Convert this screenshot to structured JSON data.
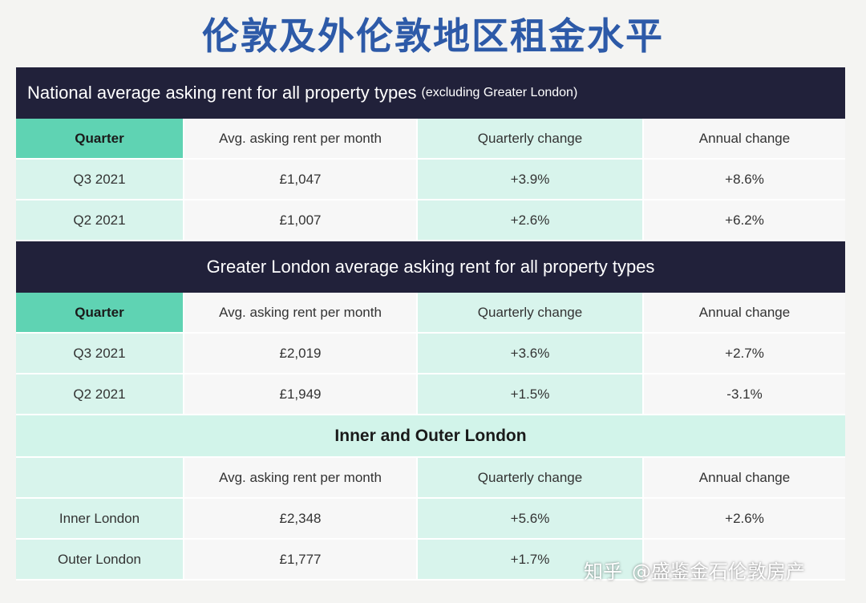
{
  "title": "伦敦及外伦敦地区租金水平",
  "national": {
    "heading": "National average asking rent for all property types",
    "heading_sub": "(excluding Greater London)",
    "columns": [
      "Quarter",
      "Avg. asking rent per month",
      "Quarterly change",
      "Annual change"
    ],
    "rows": [
      [
        "Q3 2021",
        "£1,047",
        "+3.9%",
        "+8.6%"
      ],
      [
        "Q2 2021",
        "£1,007",
        "+2.6%",
        "+6.2%"
      ]
    ]
  },
  "greater_london": {
    "heading": "Greater London average asking rent for all property types",
    "columns": [
      "Quarter",
      "Avg. asking rent per month",
      "Quarterly change",
      "Annual change"
    ],
    "rows": [
      [
        "Q3 2021",
        "£2,019",
        "+3.6%",
        "+2.7%"
      ],
      [
        "Q2 2021",
        "£1,949",
        "+1.5%",
        "-3.1%"
      ]
    ]
  },
  "inner_outer": {
    "heading": "Inner and Outer London",
    "columns": [
      "",
      "Avg. asking rent per month",
      "Quarterly change",
      "Annual change"
    ],
    "rows": [
      [
        "Inner London",
        "£2,348",
        "+5.6%",
        "+2.6%"
      ],
      [
        "Outer London",
        "£1,777",
        "+1.7%",
        ""
      ]
    ]
  },
  "watermark": {
    "platform": "知乎",
    "account": "@盛鉴金石伦敦房产"
  },
  "colors": {
    "title": "#2d5aa8",
    "dark_bar": "#21213a",
    "header_green": "#5fd3b3",
    "mint": "#d8f4ec"
  }
}
